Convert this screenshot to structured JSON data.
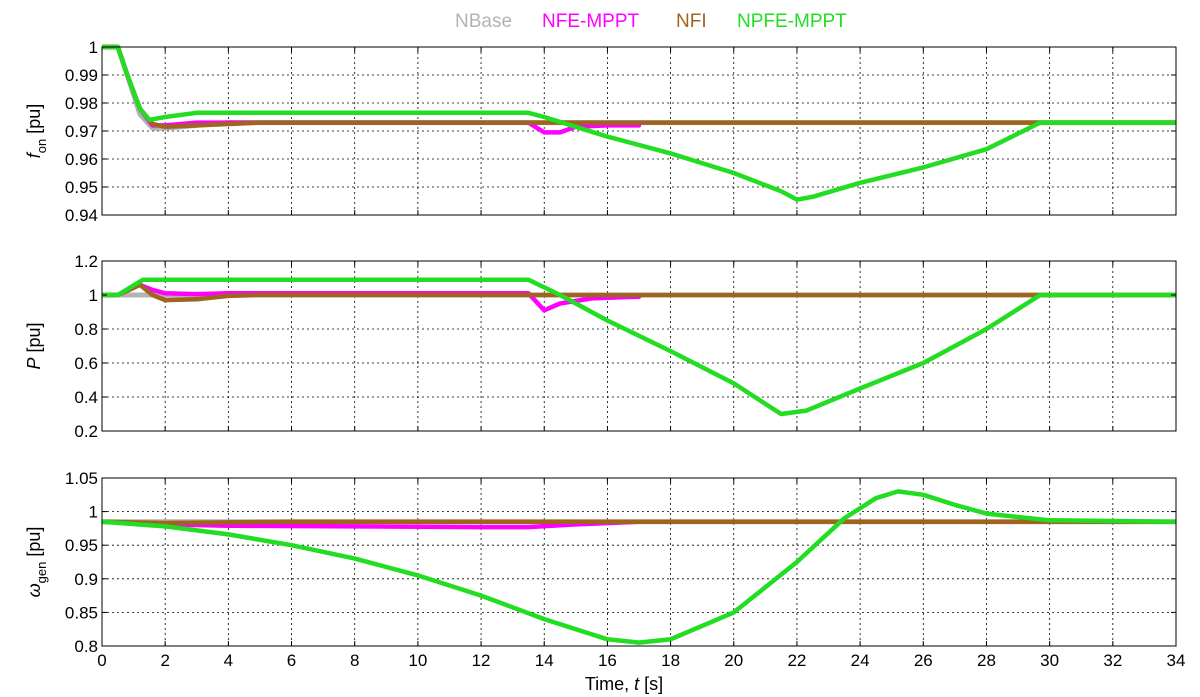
{
  "chart_data": {
    "type": "line",
    "legend": [
      {
        "name": "NBase",
        "color": "#b3b3b3"
      },
      {
        "name": "NFE-MPPT",
        "color": "#ff00ff"
      },
      {
        "name": "NFI",
        "color": "#a0641e"
      },
      {
        "name": "NPFE-MPPT",
        "color": "#22dd22"
      }
    ],
    "x_axis": {
      "label_prefix": "Time, ",
      "label_var": "t",
      "label_suffix": " [s]",
      "lim": [
        0,
        34
      ],
      "ticks": [
        "0",
        "2",
        "4",
        "6",
        "8",
        "10",
        "12",
        "14",
        "16",
        "18",
        "20",
        "22",
        "24",
        "26",
        "28",
        "30",
        "32",
        "34"
      ]
    },
    "panels": [
      {
        "id": "fon",
        "ylabel_var": "f",
        "ylabel_sub": "on",
        "ylabel_unit": " [pu]",
        "ylim": [
          0.94,
          1.0
        ],
        "yticks": [
          "0.94",
          "0.95",
          "0.96",
          "0.97",
          "0.98",
          "0.99",
          "1"
        ],
        "series": [
          {
            "name": "NBase",
            "points": [
              [
                0,
                1.0
              ],
              [
                0.5,
                1.0
              ],
              [
                0.8,
                0.99
              ],
              [
                1.2,
                0.976
              ],
              [
                1.6,
                0.971
              ],
              [
                2,
                0.971
              ],
              [
                3,
                0.972
              ],
              [
                4,
                0.973
              ],
              [
                34,
                0.973
              ]
            ]
          },
          {
            "name": "NFE-MPPT",
            "points": [
              [
                0,
                1.0
              ],
              [
                0.5,
                1.0
              ],
              [
                0.8,
                0.99
              ],
              [
                1.2,
                0.978
              ],
              [
                1.6,
                0.972
              ],
              [
                2,
                0.972
              ],
              [
                3,
                0.973
              ],
              [
                13.5,
                0.973
              ],
              [
                14,
                0.9695
              ],
              [
                14.5,
                0.9695
              ],
              [
                15,
                0.9715
              ],
              [
                16,
                0.972
              ],
              [
                17,
                0.972
              ]
            ]
          },
          {
            "name": "NFI",
            "points": [
              [
                0,
                1.0
              ],
              [
                0.5,
                1.0
              ],
              [
                0.8,
                0.99
              ],
              [
                1.2,
                0.978
              ],
              [
                1.6,
                0.9725
              ],
              [
                2,
                0.9715
              ],
              [
                3,
                0.972
              ],
              [
                4,
                0.9725
              ],
              [
                5,
                0.973
              ],
              [
                34,
                0.973
              ]
            ]
          },
          {
            "name": "NPFE-MPPT",
            "points": [
              [
                0,
                1.0
              ],
              [
                0.5,
                1.0
              ],
              [
                0.8,
                0.99
              ],
              [
                1.2,
                0.978
              ],
              [
                1.5,
                0.974
              ],
              [
                2,
                0.975
              ],
              [
                3,
                0.9765
              ],
              [
                13.5,
                0.9765
              ],
              [
                14,
                0.975
              ],
              [
                15,
                0.9715
              ],
              [
                16,
                0.968
              ],
              [
                18,
                0.962
              ],
              [
                20,
                0.955
              ],
              [
                21.5,
                0.9485
              ],
              [
                22,
                0.9455
              ],
              [
                22.5,
                0.9465
              ],
              [
                24,
                0.9515
              ],
              [
                26,
                0.957
              ],
              [
                28,
                0.9635
              ],
              [
                29.7,
                0.973
              ],
              [
                34,
                0.973
              ]
            ]
          }
        ]
      },
      {
        "id": "P",
        "ylabel_var": "P",
        "ylabel_sub": "",
        "ylabel_unit": " [pu]",
        "ylim": [
          0.2,
          1.2
        ],
        "yticks": [
          "0.2",
          "0.4",
          "0.6",
          "0.8",
          "1",
          "1.2"
        ],
        "series": [
          {
            "name": "NBase",
            "points": [
              [
                0,
                1.0
              ],
              [
                34,
                1.0
              ]
            ]
          },
          {
            "name": "NFE-MPPT",
            "points": [
              [
                0,
                1.0
              ],
              [
                0.5,
                1.0
              ],
              [
                1.2,
                1.06
              ],
              [
                1.6,
                1.03
              ],
              [
                2,
                1.01
              ],
              [
                3,
                1.005
              ],
              [
                4,
                1.01
              ],
              [
                13.5,
                1.01
              ],
              [
                14,
                0.91
              ],
              [
                14.5,
                0.95
              ],
              [
                15.5,
                0.98
              ],
              [
                17,
                0.99
              ]
            ]
          },
          {
            "name": "NFI",
            "points": [
              [
                0,
                1.0
              ],
              [
                0.5,
                1.0
              ],
              [
                1.2,
                1.06
              ],
              [
                1.6,
                1.0
              ],
              [
                2,
                0.97
              ],
              [
                3,
                0.975
              ],
              [
                4,
                0.995
              ],
              [
                5,
                1.0
              ],
              [
                34,
                1.0
              ]
            ]
          },
          {
            "name": "NPFE-MPPT",
            "points": [
              [
                0,
                1.0
              ],
              [
                0.5,
                1.0
              ],
              [
                1.3,
                1.09
              ],
              [
                3,
                1.09
              ],
              [
                13.5,
                1.09
              ],
              [
                14.5,
                1.0
              ],
              [
                16,
                0.85
              ],
              [
                18,
                0.67
              ],
              [
                20,
                0.48
              ],
              [
                21.5,
                0.3
              ],
              [
                22.3,
                0.32
              ],
              [
                24,
                0.45
              ],
              [
                26,
                0.6
              ],
              [
                28,
                0.8
              ],
              [
                29.7,
                1.0
              ],
              [
                34,
                1.0
              ]
            ]
          }
        ]
      },
      {
        "id": "wgen",
        "ylabel_var": "ω",
        "ylabel_sub": "gen",
        "ylabel_unit": " [pu]",
        "ylim": [
          0.8,
          1.05
        ],
        "yticks": [
          "0.8",
          "0.85",
          "0.9",
          "0.95",
          "1",
          "1.05"
        ],
        "series": [
          {
            "name": "NBase",
            "points": [
              [
                0,
                0.985
              ],
              [
                34,
                0.985
              ]
            ]
          },
          {
            "name": "NFE-MPPT",
            "points": [
              [
                0,
                0.985
              ],
              [
                1,
                0.983
              ],
              [
                2,
                0.981
              ],
              [
                4,
                0.979
              ],
              [
                8,
                0.978
              ],
              [
                12,
                0.977
              ],
              [
                13.5,
                0.977
              ],
              [
                15,
                0.981
              ],
              [
                17,
                0.985
              ]
            ]
          },
          {
            "name": "NFI",
            "points": [
              [
                0,
                0.985
              ],
              [
                1,
                0.984
              ],
              [
                2,
                0.983
              ],
              [
                4,
                0.984
              ],
              [
                6,
                0.985
              ],
              [
                34,
                0.985
              ]
            ]
          },
          {
            "name": "NPFE-MPPT",
            "points": [
              [
                0,
                0.985
              ],
              [
                2,
                0.978
              ],
              [
                4,
                0.966
              ],
              [
                6,
                0.95
              ],
              [
                8,
                0.93
              ],
              [
                10,
                0.905
              ],
              [
                12,
                0.875
              ],
              [
                14,
                0.84
              ],
              [
                16,
                0.81
              ],
              [
                17,
                0.805
              ],
              [
                18,
                0.81
              ],
              [
                20,
                0.85
              ],
              [
                22,
                0.925
              ],
              [
                23.5,
                0.99
              ],
              [
                24.5,
                1.02
              ],
              [
                25.2,
                1.03
              ],
              [
                26,
                1.025
              ],
              [
                27,
                1.01
              ],
              [
                28,
                0.997
              ],
              [
                30,
                0.987
              ],
              [
                34,
                0.985
              ]
            ]
          }
        ]
      }
    ]
  }
}
